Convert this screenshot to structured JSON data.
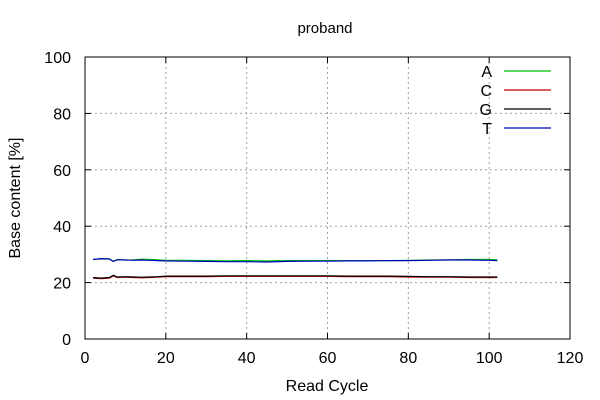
{
  "chart_data": {
    "type": "line",
    "title": "proband",
    "xlabel": "Read Cycle",
    "ylabel": "Base content [%]",
    "xlim": [
      0,
      120
    ],
    "ylim": [
      0,
      100
    ],
    "xticks": [
      0,
      20,
      40,
      60,
      80,
      100,
      120
    ],
    "yticks": [
      0,
      20,
      40,
      60,
      80,
      100
    ],
    "grid": true,
    "legend_position": "top-right",
    "series": [
      {
        "name": "A",
        "color": "#00c000",
        "x": [
          2,
          4,
          6,
          7,
          8,
          10,
          12,
          14,
          16,
          18,
          20,
          25,
          30,
          35,
          40,
          45,
          50,
          55,
          60,
          65,
          70,
          75,
          80,
          85,
          90,
          95,
          100,
          102
        ],
        "y": [
          28.3,
          28.4,
          28.3,
          27.6,
          28.2,
          28.0,
          28.1,
          28.3,
          28.2,
          28.1,
          27.9,
          27.9,
          27.8,
          27.7,
          27.8,
          27.7,
          27.8,
          27.8,
          27.8,
          27.8,
          27.8,
          27.8,
          27.9,
          28.0,
          28.1,
          28.2,
          28.2,
          28.1
        ]
      },
      {
        "name": "C",
        "color": "#c00000",
        "x": [
          2,
          4,
          6,
          7,
          8,
          10,
          12,
          14,
          16,
          18,
          20,
          25,
          30,
          35,
          40,
          45,
          50,
          55,
          60,
          65,
          70,
          75,
          80,
          85,
          90,
          95,
          100,
          102
        ],
        "y": [
          21.6,
          21.4,
          21.6,
          22.4,
          21.8,
          21.9,
          21.8,
          21.7,
          21.8,
          21.9,
          22.1,
          22.1,
          22.1,
          22.2,
          22.2,
          22.2,
          22.2,
          22.2,
          22.2,
          22.1,
          22.1,
          22.1,
          22.0,
          21.9,
          21.9,
          21.8,
          21.8,
          21.8
        ]
      },
      {
        "name": "G",
        "color": "#000000",
        "x": [
          2,
          4,
          6,
          7,
          8,
          10,
          12,
          14,
          16,
          18,
          20,
          25,
          30,
          35,
          40,
          45,
          50,
          55,
          60,
          65,
          70,
          75,
          80,
          85,
          90,
          95,
          100,
          102
        ],
        "y": [
          21.8,
          21.6,
          21.8,
          22.6,
          22.0,
          22.1,
          22.0,
          21.9,
          22.0,
          22.1,
          22.3,
          22.3,
          22.3,
          22.4,
          22.4,
          22.4,
          22.4,
          22.4,
          22.4,
          22.3,
          22.3,
          22.3,
          22.2,
          22.1,
          22.1,
          22.0,
          22.0,
          22.0
        ]
      },
      {
        "name": "T",
        "color": "#0000c0",
        "x": [
          2,
          4,
          6,
          7,
          8,
          10,
          12,
          14,
          16,
          18,
          20,
          25,
          30,
          35,
          40,
          45,
          50,
          55,
          60,
          65,
          70,
          75,
          80,
          85,
          90,
          95,
          100,
          102
        ],
        "y": [
          28.2,
          28.5,
          28.4,
          27.5,
          28.1,
          28.0,
          27.9,
          28.0,
          27.9,
          27.8,
          27.7,
          27.6,
          27.5,
          27.4,
          27.4,
          27.3,
          27.5,
          27.6,
          27.6,
          27.7,
          27.7,
          27.8,
          27.8,
          27.9,
          28.0,
          28.0,
          27.9,
          27.8
        ]
      }
    ]
  }
}
